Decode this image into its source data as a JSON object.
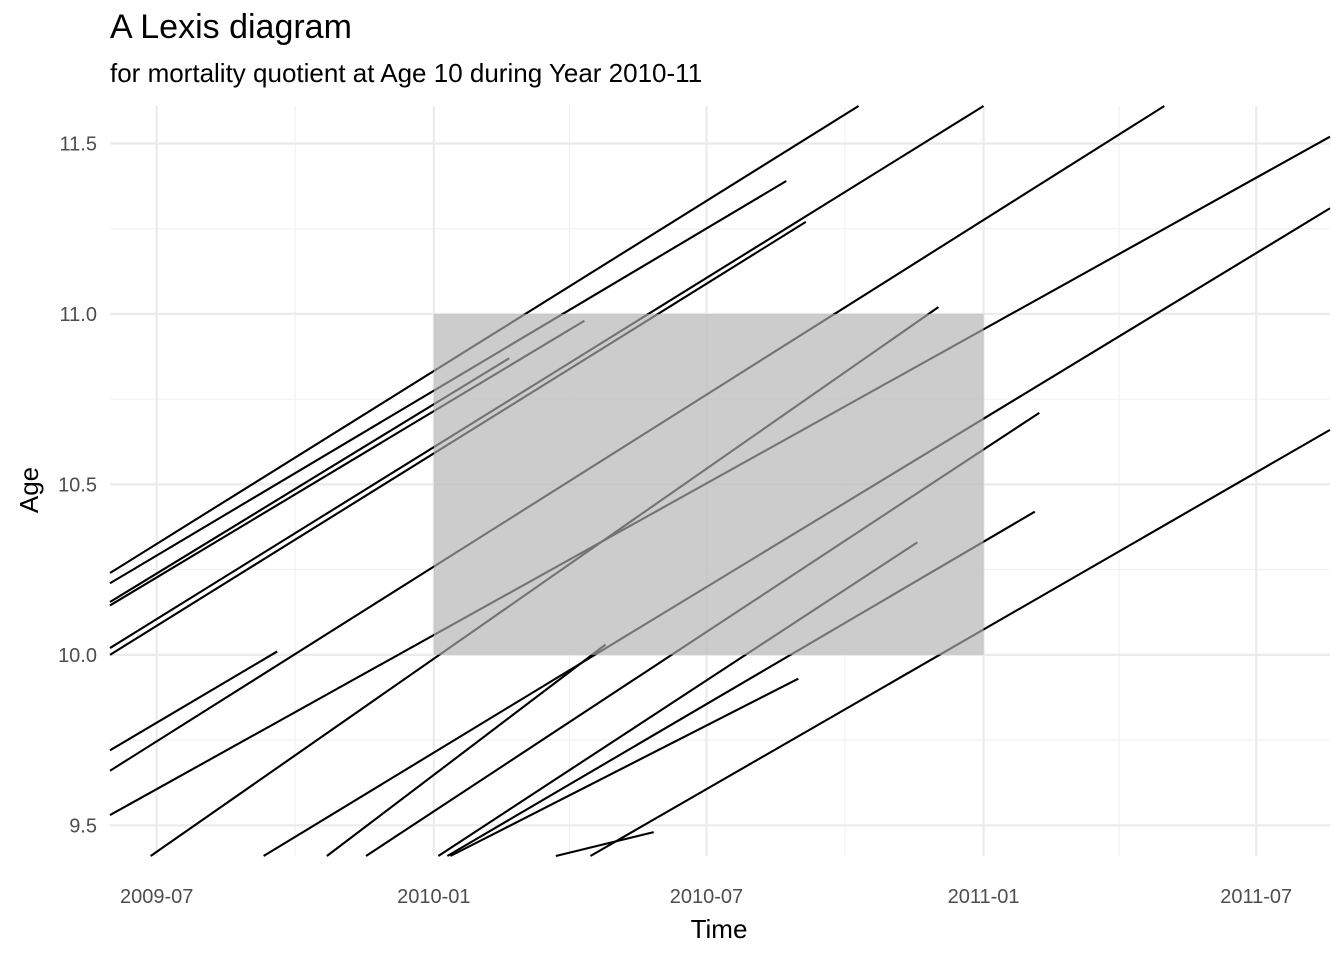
{
  "title": "A Lexis diagram",
  "subtitle": "for mortality quotient at Age 10 during Year 2010-11",
  "chart_data": {
    "type": "lexis",
    "title": "A Lexis diagram",
    "subtitle": "for mortality quotient at Age 10 during Year 2010-11",
    "xlabel": "Time",
    "ylabel": "Age",
    "xlim": [
      "2009-05-31",
      "2011-08-19"
    ],
    "ylim": [
      9.41,
      11.61
    ],
    "x_ticks": [
      "2009-07",
      "2010-01",
      "2010-07",
      "2011-01",
      "2011-07"
    ],
    "x_minor_ticks": [
      "2009-10-01",
      "2010-04-01",
      "2010-10-01",
      "2011-04-01"
    ],
    "y_ticks": [
      9.5,
      10.0,
      10.5,
      11.0,
      11.5
    ],
    "y_minor_ticks": [
      9.75,
      10.25,
      10.75,
      11.25
    ],
    "grid": true,
    "highlight_region": {
      "x": [
        "2010-01-01",
        "2011-01-01"
      ],
      "y": [
        10.0,
        11.0
      ],
      "color": "#bfbfbf",
      "opacity": 0.5
    },
    "segments": [
      {
        "x0": "2009-05-31",
        "y0": 10.24,
        "x1": "2010-10-10",
        "y1": 11.61
      },
      {
        "x0": "2009-05-31",
        "y0": 10.21,
        "x1": "2010-08-23",
        "y1": 11.39
      },
      {
        "x0": "2009-05-31",
        "y0": 10.155,
        "x1": "2010-02-20",
        "y1": 10.87
      },
      {
        "x0": "2009-05-31",
        "y0": 10.145,
        "x1": "2010-04-11",
        "y1": 10.98
      },
      {
        "x0": "2009-05-31",
        "y0": 10.02,
        "x1": "2011-01-01",
        "y1": 11.61
      },
      {
        "x0": "2009-05-31",
        "y0": 10.0,
        "x1": "2010-09-05",
        "y1": 11.27
      },
      {
        "x0": "2009-05-31",
        "y0": 9.72,
        "x1": "2009-09-19",
        "y1": 10.01
      },
      {
        "x0": "2009-05-31",
        "y0": 9.66,
        "x1": "2011-05-01",
        "y1": 11.61
      },
      {
        "x0": "2009-05-31",
        "y0": 9.53,
        "x1": "2011-08-19",
        "y1": 11.52
      },
      {
        "x0": "2009-06-27",
        "y0": 9.41,
        "x1": "2010-12-02",
        "y1": 11.02
      },
      {
        "x0": "2009-09-10",
        "y0": 9.41,
        "x1": "2011-08-19",
        "y1": 11.31
      },
      {
        "x0": "2009-10-22",
        "y0": 9.41,
        "x1": "2010-04-25",
        "y1": 10.03
      },
      {
        "x0": "2009-11-17",
        "y0": 9.41,
        "x1": "2011-02-07",
        "y1": 10.71
      },
      {
        "x0": "2010-01-04",
        "y0": 9.41,
        "x1": "2010-11-18",
        "y1": 10.33
      },
      {
        "x0": "2010-01-10",
        "y0": 9.41,
        "x1": "2011-02-04",
        "y1": 10.42
      },
      {
        "x0": "2010-01-12",
        "y0": 9.41,
        "x1": "2010-08-31",
        "y1": 9.93
      },
      {
        "x0": "2010-03-23",
        "y0": 9.41,
        "x1": "2010-05-27",
        "y1": 9.48
      },
      {
        "x0": "2010-04-15",
        "y0": 9.41,
        "x1": "2011-08-19",
        "y1": 10.66
      }
    ]
  }
}
